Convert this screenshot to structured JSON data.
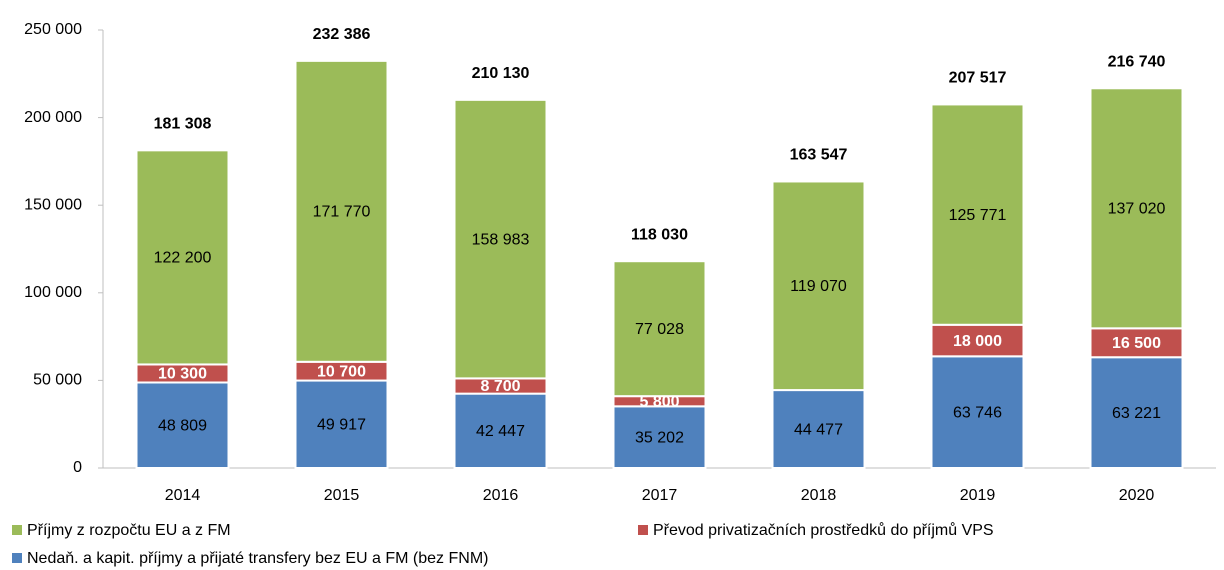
{
  "chart_data": {
    "type": "stacked_bar",
    "categories": [
      "2014",
      "2015",
      "2016",
      "2017",
      "2018",
      "2019",
      "2020"
    ],
    "series": [
      {
        "name": "Nedaň. a kapit. příjmy a přijaté transfery bez EU a FM (bez FNM)",
        "color": "#4f81bd",
        "values": [
          48809,
          49917,
          42447,
          35202,
          44477,
          63746,
          63221
        ],
        "value_labels": [
          "48 809",
          "49 917",
          "42 447",
          "35 202",
          "44 477",
          "63 746",
          "63 221"
        ]
      },
      {
        "name": "Převod privatizačních prostředků do příjmů VPS",
        "color": "#c0504d",
        "values": [
          10300,
          10700,
          8700,
          5800,
          null,
          18000,
          16500
        ],
        "value_labels": [
          "10 300",
          "10 700",
          "8 700",
          "5 800",
          null,
          "18 000",
          "16 500"
        ]
      },
      {
        "name": "Příjmy z rozpočtu EU a z FM",
        "color": "#9bbb59",
        "values": [
          122200,
          171770,
          158983,
          77028,
          119070,
          125771,
          137020
        ],
        "value_labels": [
          "122 200",
          "171 770",
          "158 983",
          "77 028",
          "119 070",
          "125 771",
          "137 020"
        ]
      }
    ],
    "totals": {
      "values": [
        181308,
        232386,
        210130,
        118030,
        163547,
        207517,
        216740
      ],
      "value_labels": [
        "181 308",
        "232 386",
        "210 130",
        "118 030",
        "163 547",
        "207 517",
        "216 740"
      ]
    },
    "ylim": [
      0,
      250000
    ],
    "yticks": [
      0,
      {
        "value": 50000,
        "label": "50 000"
      },
      {
        "value": 100000,
        "label": "100 000"
      },
      {
        "value": 150000,
        "label": "150 000"
      },
      {
        "value": 200000,
        "label": "200 000"
      },
      {
        "value": 250000,
        "label": "250 000"
      }
    ],
    "legend": "bottom",
    "grid": false
  }
}
